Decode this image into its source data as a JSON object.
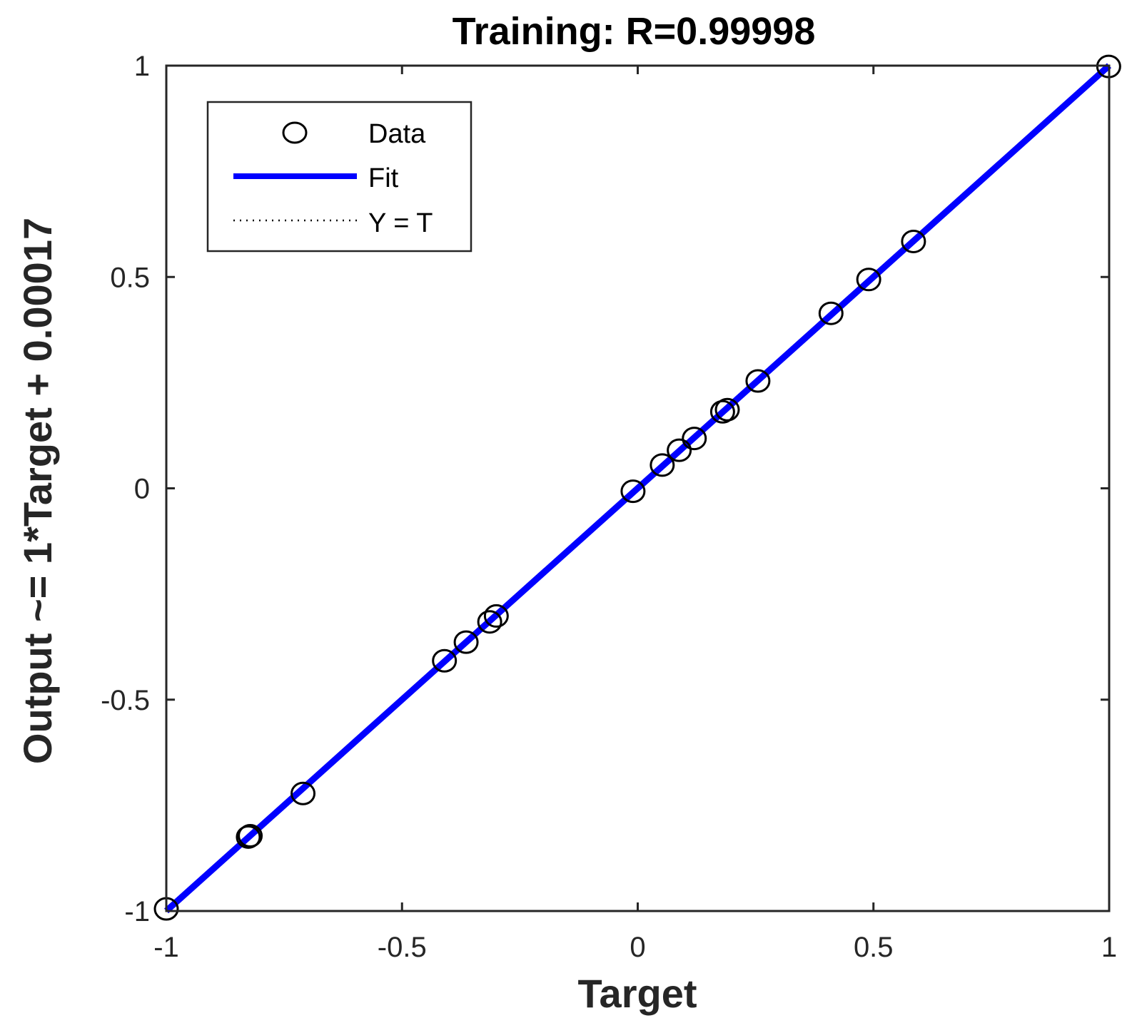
{
  "chart_data": {
    "type": "scatter",
    "title": "Training: R=0.99998",
    "xlabel": "Target",
    "ylabel": "Output ~= 1*Target + 0.00017",
    "xlim": [
      -1,
      1
    ],
    "ylim": [
      -1,
      1
    ],
    "xticks": [
      -1,
      -0.5,
      0,
      0.5,
      1
    ],
    "yticks": [
      -1,
      -0.5,
      0,
      0.5,
      1
    ],
    "xtick_labels": [
      "-1",
      "-0.5",
      "0",
      "0.5",
      "1"
    ],
    "ytick_labels": [
      "-1",
      "-0.5",
      "0",
      "0.5",
      "1"
    ],
    "grid": false,
    "legend_position": "top-left",
    "series": [
      {
        "name": "Data",
        "kind": "scatter",
        "marker": "circle",
        "color": "#000000",
        "x": [
          -1.0,
          -0.826,
          -0.822,
          -0.71,
          -0.41,
          -0.364,
          -0.314,
          -0.3,
          -0.01,
          0.052,
          0.088,
          0.12,
          0.18,
          0.19,
          0.255,
          0.41,
          0.49,
          0.585,
          0.999
        ],
        "y": [
          -0.995,
          -0.825,
          -0.822,
          -0.722,
          -0.408,
          -0.364,
          -0.316,
          -0.302,
          -0.007,
          0.055,
          0.09,
          0.118,
          0.181,
          0.186,
          0.254,
          0.414,
          0.494,
          0.584,
          0.998
        ]
      },
      {
        "name": "Fit",
        "kind": "line",
        "color": "#0000ff",
        "x": [
          -1,
          1
        ],
        "y": [
          -0.99983,
          1.00017
        ]
      },
      {
        "name": "Y = T",
        "kind": "line",
        "style": "dotted",
        "color": "#000000",
        "x": [
          -1,
          1
        ],
        "y": [
          -1,
          1
        ]
      }
    ]
  }
}
